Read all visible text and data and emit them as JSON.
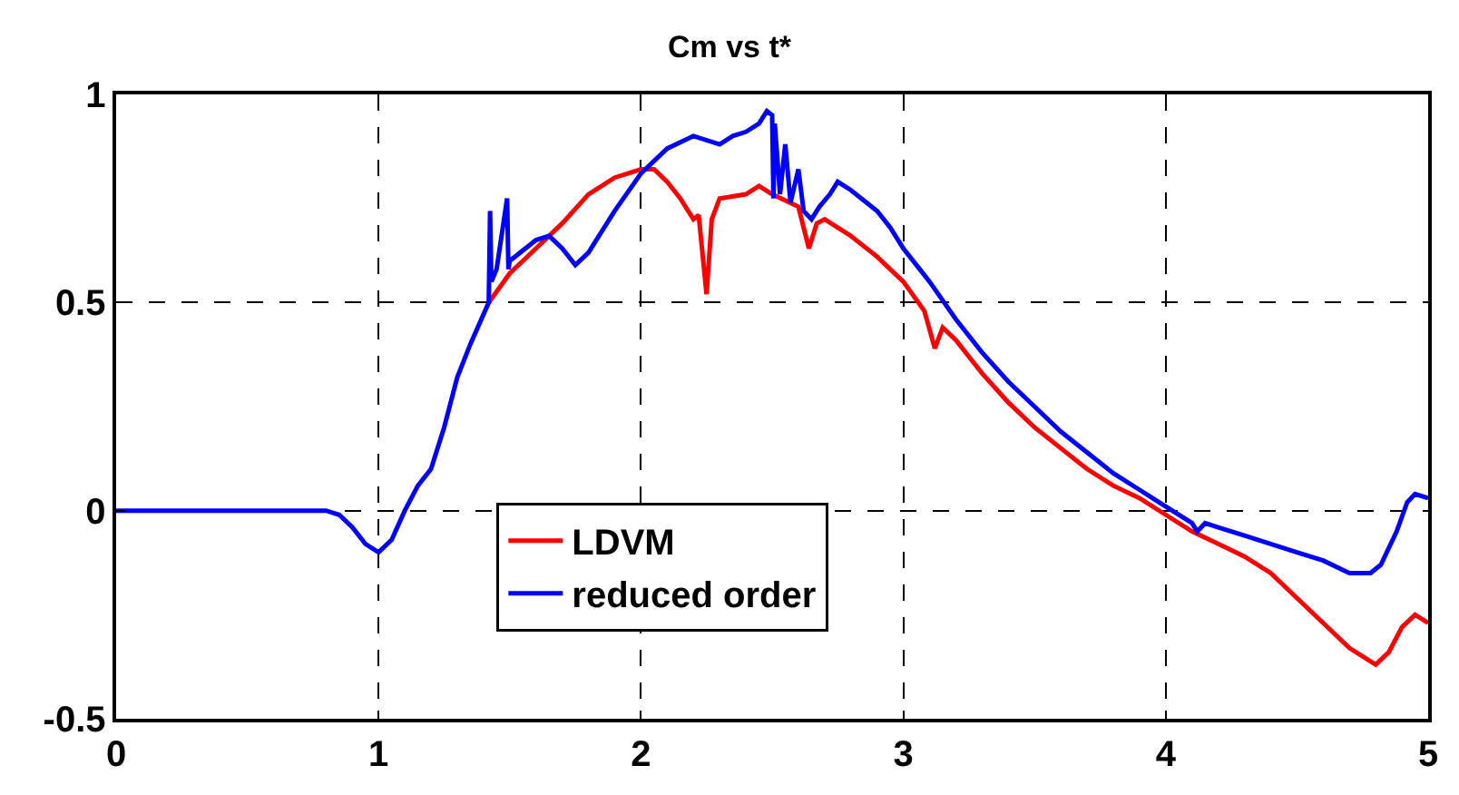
{
  "chart_data": {
    "type": "line",
    "title": "Cm vs t*",
    "xlim": [
      0,
      5
    ],
    "xticks": [
      0,
      1,
      2,
      3,
      4,
      5
    ],
    "ylim": [
      -0.5,
      1
    ],
    "yticks": [
      -0.5,
      0,
      0.5,
      1
    ],
    "grid": true,
    "legend": "bottom",
    "line_style": "solid",
    "marker": "none",
    "series": [
      {
        "name": "LDVM",
        "color": "#ff0000",
        "x": [
          1.42,
          1.5,
          1.6,
          1.7,
          1.8,
          1.9,
          2.0,
          2.05,
          2.1,
          2.15,
          2.2,
          2.22,
          2.25,
          2.27,
          2.3,
          2.4,
          2.45,
          2.5,
          2.6,
          2.64,
          2.67,
          2.7,
          2.8,
          2.9,
          3.0,
          3.08,
          3.12,
          3.15,
          3.2,
          3.3,
          3.4,
          3.5,
          3.6,
          3.7,
          3.8,
          3.9,
          4.0,
          4.1,
          4.2,
          4.3,
          4.4,
          4.5,
          4.6,
          4.7,
          4.8,
          4.85,
          4.9,
          4.95,
          5.0
        ],
        "values": [
          0.5,
          0.57,
          0.63,
          0.69,
          0.76,
          0.8,
          0.82,
          0.82,
          0.79,
          0.75,
          0.7,
          0.71,
          0.52,
          0.7,
          0.75,
          0.76,
          0.78,
          0.76,
          0.73,
          0.63,
          0.69,
          0.7,
          0.66,
          0.61,
          0.55,
          0.48,
          0.39,
          0.44,
          0.41,
          0.33,
          0.26,
          0.2,
          0.15,
          0.1,
          0.06,
          0.03,
          -0.01,
          -0.05,
          -0.08,
          -0.11,
          -0.15,
          -0.21,
          -0.27,
          -0.33,
          -0.37,
          -0.34,
          -0.28,
          -0.25,
          -0.27
        ]
      },
      {
        "name": "reduced order",
        "color": "#0000ff",
        "x": [
          0,
          0.8,
          0.85,
          0.9,
          0.95,
          1.0,
          1.05,
          1.1,
          1.15,
          1.2,
          1.25,
          1.3,
          1.35,
          1.42,
          1.425,
          1.43,
          1.45,
          1.49,
          1.495,
          1.5,
          1.6,
          1.65,
          1.7,
          1.75,
          1.8,
          1.9,
          2.0,
          2.1,
          2.2,
          2.3,
          2.35,
          2.4,
          2.45,
          2.48,
          2.5,
          2.505,
          2.51,
          2.53,
          2.55,
          2.57,
          2.6,
          2.62,
          2.65,
          2.68,
          2.72,
          2.75,
          2.8,
          2.9,
          2.95,
          3.0,
          3.1,
          3.2,
          3.3,
          3.4,
          3.5,
          3.6,
          3.7,
          3.8,
          3.9,
          4.0,
          4.1,
          4.12,
          4.15,
          4.2,
          4.3,
          4.4,
          4.5,
          4.6,
          4.7,
          4.78,
          4.82,
          4.88,
          4.92,
          4.95,
          5.0
        ],
        "values": [
          0,
          0,
          -0.01,
          -0.04,
          -0.08,
          -0.1,
          -0.07,
          0.0,
          0.06,
          0.1,
          0.2,
          0.32,
          0.4,
          0.5,
          0.72,
          0.55,
          0.58,
          0.75,
          0.58,
          0.6,
          0.65,
          0.66,
          0.63,
          0.59,
          0.62,
          0.72,
          0.81,
          0.87,
          0.9,
          0.88,
          0.9,
          0.91,
          0.93,
          0.96,
          0.95,
          0.75,
          0.93,
          0.76,
          0.88,
          0.74,
          0.82,
          0.72,
          0.7,
          0.73,
          0.76,
          0.79,
          0.77,
          0.72,
          0.68,
          0.63,
          0.55,
          0.46,
          0.38,
          0.31,
          0.25,
          0.19,
          0.14,
          0.09,
          0.05,
          0.01,
          -0.03,
          -0.05,
          -0.03,
          -0.04,
          -0.06,
          -0.08,
          -0.1,
          -0.12,
          -0.15,
          -0.15,
          -0.13,
          -0.05,
          0.02,
          0.04,
          0.03
        ]
      }
    ]
  }
}
